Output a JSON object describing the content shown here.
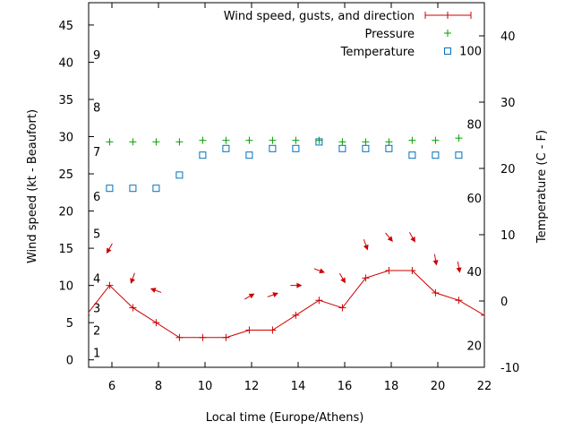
{
  "chart_data": {
    "type": "line",
    "xlabel": "Local time (Europe/Athens)",
    "ylabel_left": "Wind speed (kt - Beaufort)",
    "ylabel_right": "Temperature (C - F)",
    "xlim": [
      5,
      22
    ],
    "ylim_left": [
      -1,
      48
    ],
    "ylim_right": [
      -10,
      45
    ],
    "x_ticks": [
      6,
      8,
      10,
      12,
      14,
      16,
      18,
      20,
      22
    ],
    "y_left_ticks": [
      0,
      5,
      10,
      15,
      20,
      25,
      30,
      35,
      40,
      45
    ],
    "y_right_ticks": [
      -10,
      0,
      10,
      20,
      30,
      40
    ],
    "beaufort_labels": [
      {
        "label": "1",
        "value": 1
      },
      {
        "label": "2",
        "value": 4
      },
      {
        "label": "3",
        "value": 7
      },
      {
        "label": "4",
        "value": 11
      },
      {
        "label": "5",
        "value": 17
      },
      {
        "label": "6",
        "value": 22
      },
      {
        "label": "7",
        "value": 28
      },
      {
        "label": "8",
        "value": 34
      },
      {
        "label": "9",
        "value": 41
      }
    ],
    "fahrenheit_labels": [
      {
        "label": "20",
        "value": -6.67
      },
      {
        "label": "40",
        "value": 4.44
      },
      {
        "label": "60",
        "value": 15.56
      },
      {
        "label": "80",
        "value": 26.67
      },
      {
        "label": "100",
        "value": 37.78
      }
    ],
    "legend": [
      {
        "label": "Wind speed, gusts, and direction",
        "color": "#cc0000",
        "marker": "line-plus"
      },
      {
        "label": "Pressure",
        "color": "#00a000",
        "marker": "plus"
      },
      {
        "label": "Temperature",
        "color": "#0070c0",
        "marker": "square"
      }
    ],
    "legend_placement": "top-right",
    "grid": false,
    "series": [
      {
        "name": "Wind speed, gusts, and direction",
        "axis": "left",
        "x": [
          4.9,
          5.9,
          6.9,
          7.9,
          8.9,
          9.9,
          10.9,
          11.9,
          12.9,
          13.9,
          14.9,
          15.9,
          16.9,
          17.9,
          18.9,
          19.9,
          20.9,
          22
        ],
        "y": [
          6,
          10,
          7,
          5,
          3,
          3,
          3,
          4,
          4,
          6,
          8,
          7,
          11,
          12,
          12,
          9,
          8,
          6
        ]
      },
      {
        "name": "Pressure",
        "axis": "left",
        "x": [
          5.9,
          6.9,
          7.9,
          8.9,
          9.9,
          10.9,
          11.9,
          12.9,
          13.9,
          14.9,
          15.9,
          16.9,
          17.9,
          18.9,
          19.9,
          20.9
        ],
        "y": [
          29.3,
          29.3,
          29.3,
          29.3,
          29.5,
          29.5,
          29.5,
          29.5,
          29.5,
          29.5,
          29.3,
          29.3,
          29.3,
          29.5,
          29.5,
          29.8
        ]
      },
      {
        "name": "Temperature",
        "axis": "right",
        "x": [
          5.9,
          6.9,
          7.9,
          8.9,
          9.9,
          10.9,
          11.9,
          12.9,
          13.9,
          14.9,
          15.9,
          16.9,
          17.9,
          18.9,
          19.9,
          20.9
        ],
        "y": [
          17,
          17,
          17,
          19,
          22,
          23,
          22,
          23,
          23,
          24,
          23,
          23,
          23,
          22,
          22,
          22
        ]
      }
    ],
    "wind_direction_arrows": [
      {
        "x": 5.9,
        "y": 15.0,
        "angle_deg": 120
      },
      {
        "x": 6.9,
        "y": 11.0,
        "angle_deg": 110
      },
      {
        "x": 7.9,
        "y": 9.3,
        "angle_deg": 200
      },
      {
        "x": 11.9,
        "y": 8.5,
        "angle_deg": -30
      },
      {
        "x": 12.9,
        "y": 8.7,
        "angle_deg": -20
      },
      {
        "x": 13.9,
        "y": 10.0,
        "angle_deg": 0
      },
      {
        "x": 14.9,
        "y": 12.0,
        "angle_deg": 20
      },
      {
        "x": 15.9,
        "y": 11.0,
        "angle_deg": 60
      },
      {
        "x": 16.9,
        "y": 15.5,
        "angle_deg": 70
      },
      {
        "x": 17.9,
        "y": 16.5,
        "angle_deg": 50
      },
      {
        "x": 18.9,
        "y": 16.5,
        "angle_deg": 60
      },
      {
        "x": 19.9,
        "y": 13.5,
        "angle_deg": 80
      },
      {
        "x": 20.9,
        "y": 12.5,
        "angle_deg": 80
      }
    ]
  }
}
